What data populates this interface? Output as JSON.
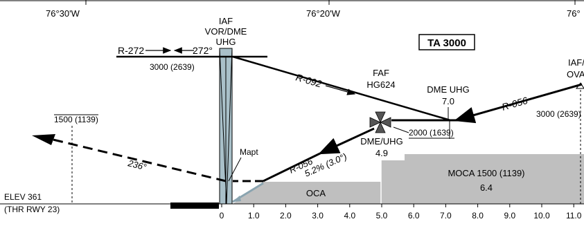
{
  "longitudes": [
    "76°30'W",
    "76°20'W",
    "76°"
  ],
  "ta_label": "TA 3000",
  "iaf_west": {
    "line1": "IAF",
    "line2": "VOR/DME",
    "line3": "UHG"
  },
  "radial_inbound": {
    "left": "R-272",
    "right": "272°"
  },
  "alt_iaf_west": "3000 (2639)",
  "radial_092": "R-092",
  "faf": {
    "line1": "FAF",
    "line2": "HG624"
  },
  "dme_uhg_7": {
    "line1": "DME UHG",
    "line2": "7.0"
  },
  "iaf_east": {
    "line1": "IAF/",
    "line2": "OVA"
  },
  "radial_056_upper": "R-056",
  "alt_iaf_east": "3000 (2639)",
  "alt_faf": "2000 (1639)",
  "dme_uhg_49": {
    "line1": "DME/UHG",
    "line2": "4.9"
  },
  "missed_alt": "1500 (1139)",
  "missed_course": "236°",
  "mapt": "Mapt",
  "radial_056_lower": "R-056",
  "glide": "5.2% (3.0°)",
  "oca": "OCA",
  "moca": {
    "line1": "MOCA 1500 (1139)",
    "line2": "6.4"
  },
  "elev": "ELEV 361",
  "thr": "(THR RWY 23)",
  "scale": [
    "0",
    "1.0",
    "2.0",
    "3.0",
    "4.0",
    "5.0",
    "6.0",
    "7.0",
    "8.0",
    "9.0",
    "10.0",
    "11.0"
  ]
}
